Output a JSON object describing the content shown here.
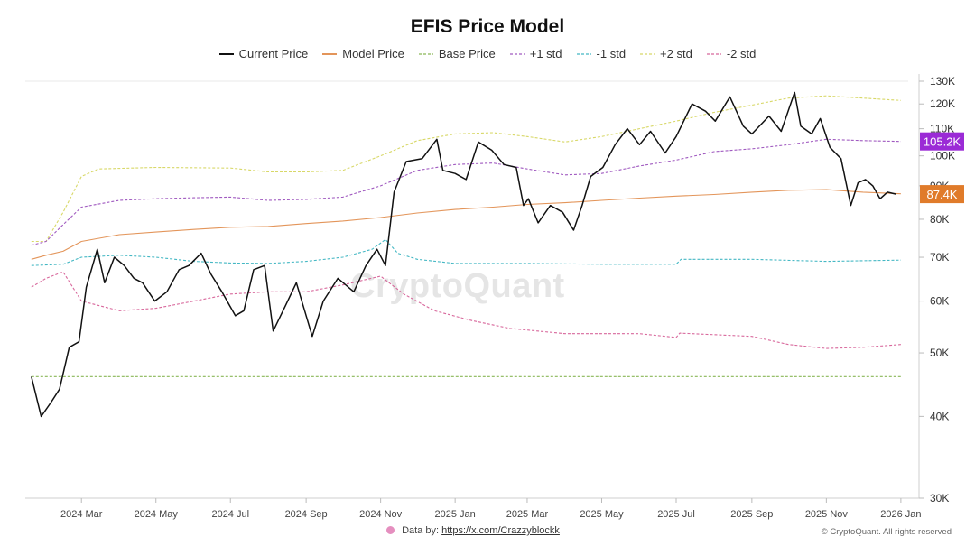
{
  "chart_data": {
    "type": "line",
    "title": "EFIS Price Model",
    "y_scale": "log",
    "ylim": [
      30000,
      130000
    ],
    "y_ticks": [
      {
        "value": 30000,
        "label": "30K"
      },
      {
        "value": 40000,
        "label": "40K"
      },
      {
        "value": 50000,
        "label": "50K"
      },
      {
        "value": 60000,
        "label": "60K"
      },
      {
        "value": 70000,
        "label": "70K"
      },
      {
        "value": 80000,
        "label": "80K"
      },
      {
        "value": 90000,
        "label": "90K"
      },
      {
        "value": 100000,
        "label": "100K"
      },
      {
        "value": 110000,
        "label": "110K"
      },
      {
        "value": 120000,
        "label": "120K"
      },
      {
        "value": 130000,
        "label": "130K"
      }
    ],
    "x_range": [
      "2024-01-15",
      "2026-01-07"
    ],
    "x_ticks": [
      {
        "date": "2024-03-01",
        "label": "2024 Mar"
      },
      {
        "date": "2024-05-01",
        "label": "2024 May"
      },
      {
        "date": "2024-07-01",
        "label": "2024 Jul"
      },
      {
        "date": "2024-09-01",
        "label": "2024 Sep"
      },
      {
        "date": "2024-11-01",
        "label": "2024 Nov"
      },
      {
        "date": "2025-01-01",
        "label": "2025 Jan"
      },
      {
        "date": "2025-03-01",
        "label": "2025 Mar"
      },
      {
        "date": "2025-05-01",
        "label": "2025 May"
      },
      {
        "date": "2025-07-01",
        "label": "2025 Jul"
      },
      {
        "date": "2025-09-01",
        "label": "2025 Sep"
      },
      {
        "date": "2025-11-01",
        "label": "2025 Nov"
      },
      {
        "date": "2026-01-01",
        "label": "2026 Jan"
      }
    ],
    "legend_position": "top",
    "grid": false,
    "series": [
      {
        "name": "Current Price",
        "color": "#111111",
        "style": "solid",
        "points": [
          [
            "2024-01-20",
            46000
          ],
          [
            "2024-01-28",
            40000
          ],
          [
            "2024-02-05",
            42000
          ],
          [
            "2024-02-12",
            44000
          ],
          [
            "2024-02-20",
            51000
          ],
          [
            "2024-02-28",
            52000
          ],
          [
            "2024-03-05",
            63000
          ],
          [
            "2024-03-14",
            72000
          ],
          [
            "2024-03-20",
            64000
          ],
          [
            "2024-03-28",
            70000
          ],
          [
            "2024-04-05",
            68000
          ],
          [
            "2024-04-13",
            65000
          ],
          [
            "2024-04-20",
            64000
          ],
          [
            "2024-04-30",
            60000
          ],
          [
            "2024-05-10",
            62000
          ],
          [
            "2024-05-20",
            67000
          ],
          [
            "2024-05-28",
            68000
          ],
          [
            "2024-06-07",
            71000
          ],
          [
            "2024-06-15",
            66000
          ],
          [
            "2024-06-24",
            62000
          ],
          [
            "2024-07-05",
            57000
          ],
          [
            "2024-07-12",
            58000
          ],
          [
            "2024-07-20",
            67000
          ],
          [
            "2024-07-29",
            68000
          ],
          [
            "2024-08-05",
            54000
          ],
          [
            "2024-08-15",
            59000
          ],
          [
            "2024-08-24",
            64000
          ],
          [
            "2024-09-06",
            53000
          ],
          [
            "2024-09-15",
            60000
          ],
          [
            "2024-09-27",
            65000
          ],
          [
            "2024-10-10",
            62000
          ],
          [
            "2024-10-20",
            68000
          ],
          [
            "2024-10-29",
            72000
          ],
          [
            "2024-11-05",
            68000
          ],
          [
            "2024-11-12",
            88000
          ],
          [
            "2024-11-22",
            98000
          ],
          [
            "2024-12-05",
            99000
          ],
          [
            "2024-12-17",
            106000
          ],
          [
            "2024-12-22",
            95000
          ],
          [
            "2025-01-01",
            94000
          ],
          [
            "2025-01-10",
            92000
          ],
          [
            "2025-01-20",
            105000
          ],
          [
            "2025-01-31",
            102000
          ],
          [
            "2025-02-10",
            97000
          ],
          [
            "2025-02-20",
            96000
          ],
          [
            "2025-02-26",
            84000
          ],
          [
            "2025-03-02",
            86000
          ],
          [
            "2025-03-10",
            79000
          ],
          [
            "2025-03-20",
            84000
          ],
          [
            "2025-03-30",
            82000
          ],
          [
            "2025-04-08",
            77000
          ],
          [
            "2025-04-15",
            84000
          ],
          [
            "2025-04-22",
            93000
          ],
          [
            "2025-05-02",
            96000
          ],
          [
            "2025-05-12",
            104000
          ],
          [
            "2025-05-22",
            110000
          ],
          [
            "2025-06-01",
            104000
          ],
          [
            "2025-06-10",
            109000
          ],
          [
            "2025-06-22",
            101000
          ],
          [
            "2025-07-01",
            107000
          ],
          [
            "2025-07-14",
            120000
          ],
          [
            "2025-07-25",
            117000
          ],
          [
            "2025-08-02",
            113000
          ],
          [
            "2025-08-14",
            123000
          ],
          [
            "2025-08-25",
            111000
          ],
          [
            "2025-09-01",
            108000
          ],
          [
            "2025-09-15",
            115000
          ],
          [
            "2025-09-25",
            109000
          ],
          [
            "2025-10-06",
            125000
          ],
          [
            "2025-10-11",
            111000
          ],
          [
            "2025-10-20",
            108000
          ],
          [
            "2025-10-27",
            114000
          ],
          [
            "2025-11-04",
            103000
          ],
          [
            "2025-11-13",
            99000
          ],
          [
            "2025-11-21",
            84000
          ],
          [
            "2025-11-27",
            91000
          ],
          [
            "2025-12-03",
            92000
          ],
          [
            "2025-12-09",
            90000
          ],
          [
            "2025-12-15",
            86000
          ],
          [
            "2025-12-21",
            88000
          ],
          [
            "2025-12-28",
            87400
          ]
        ]
      },
      {
        "name": "Model Price",
        "color": "#e3955a",
        "style": "solid",
        "points": [
          [
            "2024-01-20",
            69500
          ],
          [
            "2024-02-01",
            70500
          ],
          [
            "2024-02-15",
            71500
          ],
          [
            "2024-03-01",
            74000
          ],
          [
            "2024-04-01",
            75800
          ],
          [
            "2024-05-01",
            76500
          ],
          [
            "2024-06-01",
            77200
          ],
          [
            "2024-07-01",
            77800
          ],
          [
            "2024-08-01",
            78000
          ],
          [
            "2024-09-01",
            78800
          ],
          [
            "2024-10-01",
            79500
          ],
          [
            "2024-11-01",
            80500
          ],
          [
            "2024-12-01",
            81800
          ],
          [
            "2025-01-01",
            82800
          ],
          [
            "2025-02-01",
            83500
          ],
          [
            "2025-03-01",
            84300
          ],
          [
            "2025-04-01",
            84800
          ],
          [
            "2025-05-01",
            85500
          ],
          [
            "2025-06-01",
            86200
          ],
          [
            "2025-07-01",
            86800
          ],
          [
            "2025-08-01",
            87300
          ],
          [
            "2025-09-01",
            88000
          ],
          [
            "2025-10-01",
            88600
          ],
          [
            "2025-11-01",
            88800
          ],
          [
            "2025-12-01",
            88000
          ],
          [
            "2026-01-01",
            87500
          ]
        ]
      },
      {
        "name": "Base Price",
        "color": "#8ab858",
        "style": "dashed",
        "points": [
          [
            "2024-01-20",
            46000
          ],
          [
            "2026-01-01",
            46000
          ]
        ]
      },
      {
        "name": "+1 std",
        "color": "#a05ac0",
        "style": "dashed",
        "points": [
          [
            "2024-01-20",
            73000
          ],
          [
            "2024-02-01",
            74000
          ],
          [
            "2024-02-15",
            78500
          ],
          [
            "2024-03-01",
            83500
          ],
          [
            "2024-04-01",
            85500
          ],
          [
            "2024-05-01",
            86000
          ],
          [
            "2024-06-01",
            86300
          ],
          [
            "2024-07-01",
            86500
          ],
          [
            "2024-08-01",
            85500
          ],
          [
            "2024-09-01",
            85800
          ],
          [
            "2024-10-01",
            86500
          ],
          [
            "2024-11-01",
            90000
          ],
          [
            "2024-12-01",
            95000
          ],
          [
            "2025-01-01",
            97000
          ],
          [
            "2025-02-01",
            97500
          ],
          [
            "2025-03-01",
            95500
          ],
          [
            "2025-04-01",
            93500
          ],
          [
            "2025-05-01",
            94000
          ],
          [
            "2025-06-01",
            96500
          ],
          [
            "2025-07-01",
            98500
          ],
          [
            "2025-08-01",
            101500
          ],
          [
            "2025-09-01",
            102500
          ],
          [
            "2025-10-01",
            104000
          ],
          [
            "2025-11-01",
            106000
          ],
          [
            "2025-12-01",
            105500
          ],
          [
            "2026-01-01",
            105200
          ]
        ]
      },
      {
        "name": "-1 std",
        "color": "#45b8c4",
        "style": "dashed",
        "points": [
          [
            "2024-01-20",
            68000
          ],
          [
            "2024-02-15",
            68300
          ],
          [
            "2024-03-01",
            70000
          ],
          [
            "2024-04-01",
            70500
          ],
          [
            "2024-05-01",
            70000
          ],
          [
            "2024-06-01",
            69000
          ],
          [
            "2024-07-01",
            68600
          ],
          [
            "2024-08-01",
            68500
          ],
          [
            "2024-09-01",
            69000
          ],
          [
            "2024-10-01",
            70000
          ],
          [
            "2024-10-25",
            72000
          ],
          [
            "2024-11-05",
            74500
          ],
          [
            "2024-11-15",
            71000
          ],
          [
            "2024-12-01",
            69500
          ],
          [
            "2025-01-01",
            68500
          ],
          [
            "2025-03-01",
            68500
          ],
          [
            "2025-05-01",
            68300
          ],
          [
            "2025-07-01",
            68300
          ],
          [
            "2025-07-05",
            69500
          ],
          [
            "2025-09-01",
            69500
          ],
          [
            "2025-11-01",
            69000
          ],
          [
            "2026-01-01",
            69300
          ]
        ]
      },
      {
        "name": "+2 std",
        "color": "#d8d868",
        "style": "dashed",
        "points": [
          [
            "2024-01-20",
            74000
          ],
          [
            "2024-02-01",
            74000
          ],
          [
            "2024-02-15",
            82000
          ],
          [
            "2024-03-01",
            93000
          ],
          [
            "2024-03-15",
            95500
          ],
          [
            "2024-05-01",
            96000
          ],
          [
            "2024-07-01",
            95800
          ],
          [
            "2024-08-01",
            94500
          ],
          [
            "2024-09-01",
            94500
          ],
          [
            "2024-10-01",
            95000
          ],
          [
            "2024-11-01",
            100000
          ],
          [
            "2024-12-01",
            105500
          ],
          [
            "2025-01-01",
            108000
          ],
          [
            "2025-02-01",
            108500
          ],
          [
            "2025-03-01",
            107000
          ],
          [
            "2025-04-01",
            105000
          ],
          [
            "2025-05-01",
            107000
          ],
          [
            "2025-06-01",
            110000
          ],
          [
            "2025-07-01",
            113000
          ],
          [
            "2025-08-01",
            116500
          ],
          [
            "2025-09-01",
            119500
          ],
          [
            "2025-10-01",
            122500
          ],
          [
            "2025-11-01",
            123500
          ],
          [
            "2025-12-01",
            122500
          ],
          [
            "2026-01-01",
            121500
          ]
        ]
      },
      {
        "name": "-2 std",
        "color": "#d8689c",
        "style": "dashed",
        "points": [
          [
            "2024-01-20",
            63000
          ],
          [
            "2024-02-01",
            65000
          ],
          [
            "2024-02-15",
            66500
          ],
          [
            "2024-03-01",
            60000
          ],
          [
            "2024-04-01",
            58000
          ],
          [
            "2024-05-01",
            58500
          ],
          [
            "2024-06-01",
            60000
          ],
          [
            "2024-07-01",
            61500
          ],
          [
            "2024-08-01",
            62000
          ],
          [
            "2024-09-01",
            62000
          ],
          [
            "2024-10-01",
            63500
          ],
          [
            "2024-11-01",
            65500
          ],
          [
            "2024-11-20",
            61500
          ],
          [
            "2024-12-15",
            58000
          ],
          [
            "2025-01-15",
            56000
          ],
          [
            "2025-02-15",
            54500
          ],
          [
            "2025-04-01",
            53500
          ],
          [
            "2025-06-01",
            53500
          ],
          [
            "2025-07-01",
            52800
          ],
          [
            "2025-07-04",
            53600
          ],
          [
            "2025-09-01",
            53000
          ],
          [
            "2025-10-01",
            51500
          ],
          [
            "2025-11-01",
            50800
          ],
          [
            "2025-12-01",
            51000
          ],
          [
            "2026-01-01",
            51500
          ]
        ]
      }
    ],
    "price_tags": [
      {
        "label": "105.2K",
        "value": 105200,
        "color": "#9b2bd6"
      },
      {
        "label": "87.4K",
        "value": 87400,
        "color": "#e07b2a"
      }
    ]
  },
  "watermark": "CryptoQuant",
  "footer": {
    "data_by_label": "Data by:",
    "data_by_link": "https://x.com/Crazzyblockk",
    "copyright": "© CryptoQuant. All rights reserved"
  }
}
